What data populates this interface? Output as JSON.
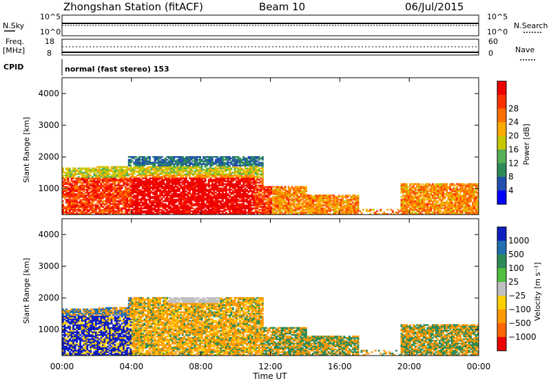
{
  "header": {
    "station": "Zhongshan Station (fitACF)",
    "beam": "Beam 10",
    "date": "06/Jul/2015"
  },
  "noise_panel": {
    "left_label": "N.Sky",
    "left_ticks": [
      "10^5",
      "10^0"
    ],
    "right_ticks": [
      "10^5",
      "10^0"
    ],
    "right_label": "N.Search"
  },
  "freq_panel": {
    "left_label_1": "Freq.",
    "left_label_2": "[MHz]",
    "left_ticks": [
      "18",
      "8"
    ],
    "right_ticks": [
      "60",
      "0"
    ],
    "right_label": "Nave"
  },
  "cpid": {
    "label": "CPID",
    "value": "normal (fast stereo) 153"
  },
  "x_axis": {
    "label": "Time UT",
    "ticks": [
      "00:00",
      "04:00",
      "08:00",
      "12:00",
      "16:00",
      "20:00",
      "00:00"
    ]
  },
  "chart_data": [
    {
      "type": "heatmap",
      "quantity": "Power",
      "ylabel": "Slant Range [km]",
      "yticks": [
        "1000",
        "2000",
        "3000",
        "4000"
      ],
      "ylim": [
        180,
        4500
      ],
      "xlim": [
        0,
        24
      ],
      "colorbar": {
        "label": "Power [dB]",
        "ticks": [
          "4",
          "8",
          "12",
          "16",
          "20",
          "24",
          "28"
        ],
        "colors": [
          "#0000ff",
          "#2050b0",
          "#2e8b57",
          "#55b055",
          "#c8c800",
          "#ffaa00",
          "#ff7000",
          "#ff3300",
          "#ee0000"
        ]
      }
    },
    {
      "type": "heatmap",
      "quantity": "Velocity",
      "ylabel": "Slant Range [km]",
      "yticks": [
        "1000",
        "2000",
        "3000",
        "4000"
      ],
      "ylim": [
        180,
        4500
      ],
      "xlim": [
        0,
        24
      ],
      "colorbar": {
        "label": "Velocity [m s⁻¹]",
        "ticks": [
          "1000",
          "500",
          "100",
          "25",
          "−25",
          "−100",
          "−500",
          "−1000"
        ],
        "colors": [
          "#1020c0",
          "#2070b0",
          "#2e8b57",
          "#50c040",
          "#c0c0c0",
          "#ffd000",
          "#ff9900",
          "#ff6600",
          "#ee0000"
        ]
      }
    }
  ]
}
